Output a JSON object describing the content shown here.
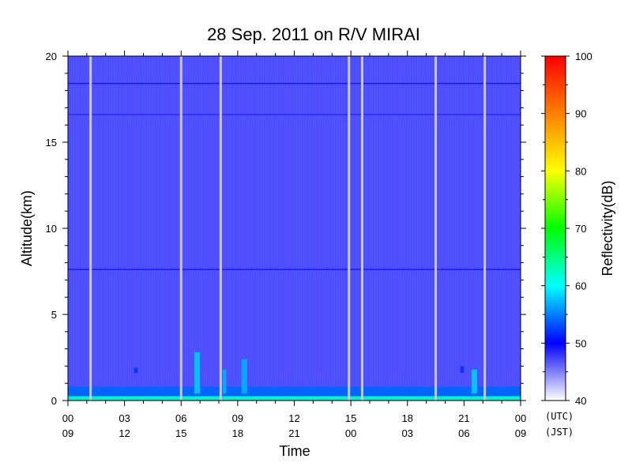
{
  "chart_data": {
    "type": "heatmap",
    "title": "28 Sep. 2011  on R/V MIRAI",
    "xlabel": "Time",
    "ylabel": "Altitude(km)",
    "colorbar_label": "Reflectivity(dB)",
    "xlim": [
      0,
      24
    ],
    "ylim": [
      0,
      20
    ],
    "clim": [
      40,
      100
    ],
    "x_ticks_utc": [
      "00",
      "03",
      "06",
      "09",
      "12",
      "15",
      "18",
      "21",
      "00"
    ],
    "x_ticks_jst": [
      "09",
      "12",
      "15",
      "18",
      "21",
      "00",
      "03",
      "06",
      "09"
    ],
    "x_tick_hours": [
      0,
      3,
      6,
      9,
      12,
      15,
      18,
      21,
      24
    ],
    "timezone_labels": [
      "(UTC)",
      "(JST)"
    ],
    "y_ticks": [
      0,
      5,
      10,
      15,
      20
    ],
    "colorbar_ticks": [
      40,
      50,
      60,
      70,
      80,
      90,
      100
    ],
    "background_reflectivity": 47,
    "data_gaps_hours": [
      1.2,
      6.0,
      8.1,
      14.9,
      15.6,
      19.5,
      22.1
    ],
    "features": [
      {
        "name": "boundary-layer echo",
        "x_start": 0,
        "x_end": 24,
        "y_bottom": 0,
        "y_top": 0.8,
        "reflectivity": 54
      },
      {
        "name": "surface clutter",
        "x_start": 0,
        "x_end": 24,
        "y_bottom": 0,
        "y_top": 0.25,
        "reflectivity": 62
      },
      {
        "name": "cloud echo",
        "x_start": 6.7,
        "x_end": 7.0,
        "y_bottom": 0.4,
        "y_top": 2.8,
        "reflectivity": 58
      },
      {
        "name": "cloud echo",
        "x_start": 8.2,
        "x_end": 8.4,
        "y_bottom": 0.4,
        "y_top": 1.8,
        "reflectivity": 57
      },
      {
        "name": "cloud echo",
        "x_start": 9.2,
        "x_end": 9.5,
        "y_bottom": 0.4,
        "y_top": 2.4,
        "reflectivity": 57
      },
      {
        "name": "cloud echo",
        "x_start": 21.4,
        "x_end": 21.7,
        "y_bottom": 0.4,
        "y_top": 1.8,
        "reflectivity": 58
      },
      {
        "name": "small echo",
        "x_start": 3.5,
        "x_end": 3.7,
        "y_bottom": 1.6,
        "y_top": 1.9,
        "reflectivity": 52
      },
      {
        "name": "small echo",
        "x_start": 20.8,
        "x_end": 21.0,
        "y_bottom": 1.6,
        "y_top": 2.0,
        "reflectivity": 52
      }
    ],
    "horizontal_bands": [
      {
        "altitude": 18.4,
        "reflectivity": 50
      },
      {
        "altitude": 16.6,
        "reflectivity": 49
      },
      {
        "altitude": 7.6,
        "reflectivity": 50
      }
    ]
  }
}
